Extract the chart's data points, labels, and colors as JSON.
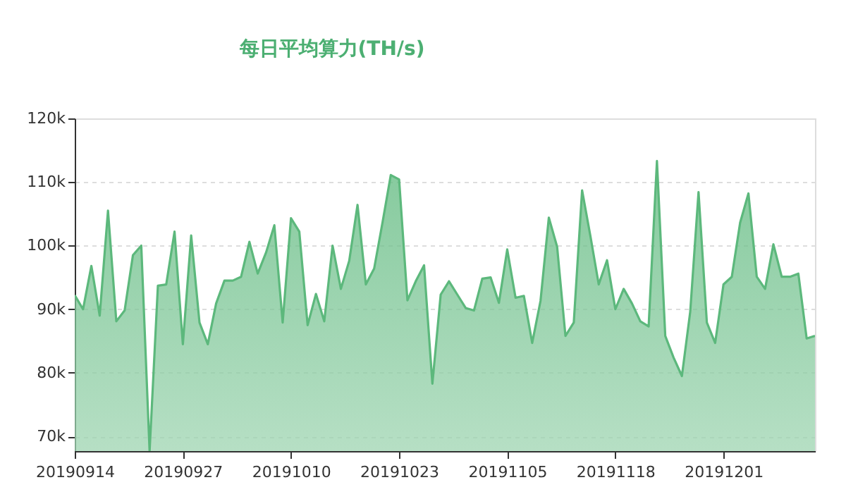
{
  "chart_data": {
    "type": "area",
    "title": "每日平均算力(TH/s)",
    "categories": [
      "20190914",
      null,
      null,
      null,
      null,
      null,
      null,
      null,
      null,
      null,
      null,
      null,
      null,
      "20190927",
      null,
      null,
      null,
      null,
      null,
      null,
      null,
      null,
      null,
      null,
      null,
      null,
      "20191010",
      null,
      null,
      null,
      null,
      null,
      null,
      null,
      null,
      null,
      null,
      null,
      null,
      "20191023",
      null,
      null,
      null,
      null,
      null,
      null,
      null,
      null,
      null,
      null,
      null,
      null,
      "20191105",
      null,
      null,
      null,
      null,
      null,
      null,
      null,
      null,
      null,
      null,
      null,
      null,
      "20191118",
      null,
      null,
      null,
      null,
      null,
      null,
      null,
      null,
      null,
      null,
      null,
      null,
      "20191201",
      null,
      null,
      null,
      null,
      null,
      null,
      null,
      null,
      null,
      null,
      null
    ],
    "series": [
      {
        "color": "#5cb87c",
        "values": [
          92200,
          90000,
          96800,
          89000,
          105500,
          88100,
          89800,
          98500,
          100000,
          67700,
          93700,
          93900,
          102200,
          84500,
          101600,
          87900,
          84500,
          90900,
          94500,
          94500,
          95100,
          100600,
          95600,
          98900,
          103200,
          87900,
          104300,
          102200,
          87500,
          92400,
          88100,
          100000,
          93200,
          97600,
          106400,
          93900,
          96400,
          103600,
          111100,
          110400,
          91400,
          94400,
          96900,
          78300,
          92300,
          94400,
          92300,
          90200,
          89800,
          94800,
          95000,
          91000,
          99400,
          91800,
          92100,
          84700,
          91300,
          104400,
          99800,
          85800,
          87900,
          108700,
          101500,
          93900,
          97700,
          90000,
          93200,
          90900,
          88100,
          87300,
          113300,
          85800,
          82400,
          79500,
          89600,
          108400,
          87900,
          84700,
          93900,
          95100,
          103600,
          108200,
          95100,
          93200,
          100200,
          95100,
          95100,
          95600,
          85400,
          85800
        ]
      }
    ],
    "ylim": [
      67700,
      120000
    ],
    "yticks": [
      {
        "value": 70000,
        "label": "70k"
      },
      {
        "value": 80000,
        "label": "80k"
      },
      {
        "value": 90000,
        "label": "90k"
      },
      {
        "value": 100000,
        "label": "100k"
      },
      {
        "value": 110000,
        "label": "110k"
      },
      {
        "value": 120000,
        "label": "120k"
      }
    ],
    "grid": "y",
    "line_style": "solid"
  }
}
